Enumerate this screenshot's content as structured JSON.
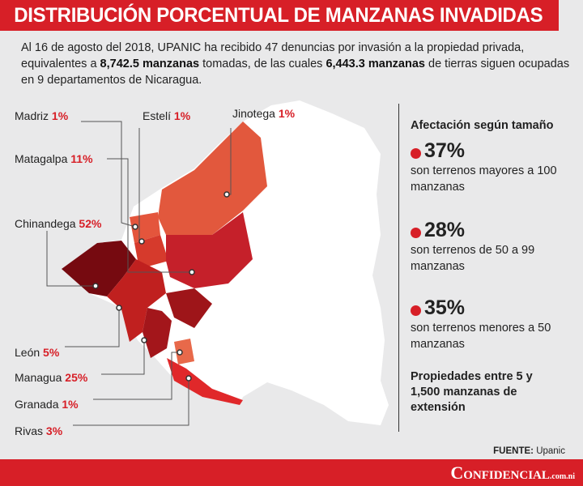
{
  "header": {
    "title": "DISTRIBUCIÓN PORCENTUAL DE MANZANAS INVADIDAS"
  },
  "intro": {
    "p1": "Al 16 de agosto del 2018, UPANIC ha recibido 47 denuncias por invasión a la propiedad privada, equivalentes a ",
    "b1": "8,742.5 manzanas",
    "p2": " tomadas, de las cuales ",
    "b2": "6,443.3 manzanas",
    "p3": " de tierras siguen ocupadas en 9 departamentos de Nicaragua."
  },
  "departments": [
    {
      "name": "Madriz",
      "pct": "1%"
    },
    {
      "name": "Estelí",
      "pct": "1%"
    },
    {
      "name": "Jinotega",
      "pct": "1%"
    },
    {
      "name": "Matagalpa",
      "pct": "11%"
    },
    {
      "name": "Chinandega",
      "pct": "52%"
    },
    {
      "name": "León",
      "pct": "5%"
    },
    {
      "name": "Managua",
      "pct": "25%"
    },
    {
      "name": "Granada",
      "pct": "1%"
    },
    {
      "name": "Rivas",
      "pct": "3%"
    }
  ],
  "panel": {
    "title": "Afectación según tamaño",
    "stats": [
      {
        "value": "37%",
        "desc": "son terrenos mayores a 100 manzanas"
      },
      {
        "value": "28%",
        "desc": "son terrenos de 50 a 99 manzanas"
      },
      {
        "value": "35%",
        "desc": "son terrenos menores a 50 manzanas"
      }
    ],
    "note": "Propiedades entre 5 y 1,500 manzanas de extensión"
  },
  "source": {
    "label": "FUENTE:",
    "value": " Upanic"
  },
  "footer": {
    "logo": "Confidencial",
    "logo_suffix": ".com.ni"
  },
  "colors": {
    "accent": "#d71f27",
    "background": "#e9e9ea"
  }
}
